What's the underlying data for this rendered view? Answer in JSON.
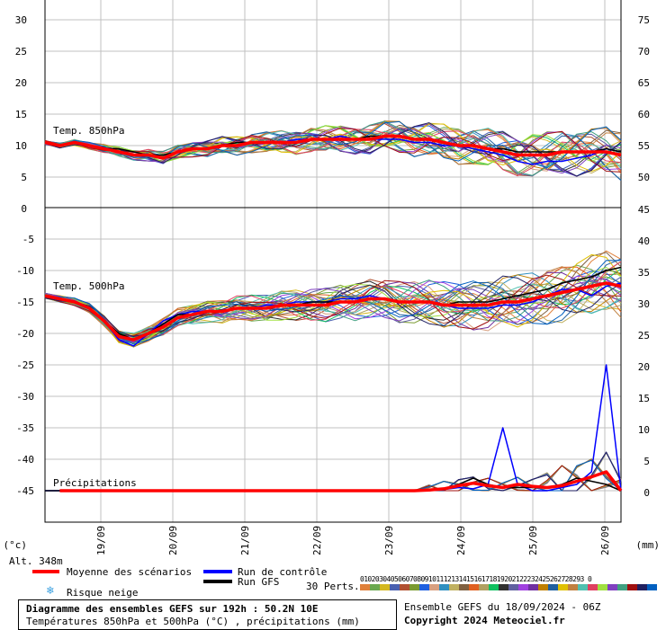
{
  "chart_data": {
    "type": "line",
    "x_axis": {
      "dates": [
        "19/09",
        "20/09",
        "21/09",
        "22/09",
        "23/09",
        "24/09",
        "25/09",
        "26/09"
      ],
      "unit_label": "(°c)",
      "right_unit_label": "(mm)"
    },
    "panels": [
      {
        "name": "Temp. 850hPa",
        "left_ticks": [
          5,
          10,
          15,
          20,
          25,
          30
        ],
        "right_ticks": [
          50,
          55,
          60,
          65,
          70,
          75
        ],
        "ylim": [
          0,
          33
        ]
      },
      {
        "name": "Temp. 500hPa",
        "left_ticks": [
          -5,
          -10,
          -15,
          -20,
          -25,
          -30,
          -35,
          -40,
          -45
        ],
        "right_ticks": [
          45,
          40,
          35,
          30,
          25,
          20,
          15,
          10,
          5,
          0
        ],
        "ylim": [
          -45,
          0
        ]
      },
      {
        "name": "Précipitations",
        "unit": "mm"
      }
    ],
    "mean_850": [
      10.5,
      10,
      10.5,
      10,
      9.5,
      9,
      8.5,
      8.5,
      8,
      9,
      9.5,
      9.5,
      10,
      10,
      10.5,
      10.5,
      10.5,
      10.5,
      11,
      11,
      11,
      11,
      11,
      11.5,
      11.5,
      11,
      11,
      10.5,
      10,
      10,
      9.5,
      9,
      8.5,
      8.5,
      8.5,
      9,
      9,
      9,
      9,
      8.5
    ],
    "mean_500": [
      -14,
      -14.5,
      -15,
      -16,
      -18,
      -20.5,
      -21,
      -20,
      -19,
      -17.5,
      -17,
      -16.5,
      -16.5,
      -16,
      -16,
      -16,
      -15.5,
      -15.5,
      -15.5,
      -15.5,
      -15,
      -15,
      -14.5,
      -14.5,
      -15,
      -15,
      -15,
      -15.5,
      -15.5,
      -15.5,
      -15.5,
      -15,
      -15,
      -14.5,
      -14,
      -13.5,
      -13,
      -12.5,
      -12,
      -12.5
    ],
    "mean_precip": [
      0,
      0,
      0,
      0,
      0,
      0,
      0,
      0,
      0,
      0,
      0,
      0,
      0,
      0,
      0,
      0,
      0,
      0,
      0,
      0,
      0,
      0,
      0,
      0,
      0,
      0,
      0.1,
      0.3,
      0.8,
      1.2,
      0.8,
      0.5,
      1,
      0.7,
      0.5,
      0.8,
      1.5,
      2.2,
      3,
      0
    ],
    "control_850": [
      10.5,
      10,
      10.5,
      10,
      9.5,
      9,
      8.5,
      8.5,
      8,
      9,
      9.5,
      9.5,
      10,
      10,
      10.5,
      10.5,
      10.5,
      11,
      11,
      11,
      11.5,
      11,
      11,
      11,
      11,
      10.5,
      10.5,
      10,
      10,
      9.5,
      9,
      8.5,
      7.5,
      7,
      7.5,
      7.5,
      8,
      8.5,
      9.5,
      9
    ],
    "control_500": [
      -14,
      -14.5,
      -15,
      -16,
      -18,
      -21,
      -22,
      -20,
      -18,
      -17,
      -16.5,
      -16.5,
      -16.5,
      -16,
      -16,
      -15.5,
      -15.5,
      -15,
      -15,
      -15,
      -14.5,
      -14.5,
      -14,
      -14.5,
      -15,
      -15,
      -15,
      -15.5,
      -16,
      -16,
      -16,
      -15.5,
      -15.5,
      -15,
      -14,
      -13,
      -13,
      -14,
      -12.5,
      -12
    ],
    "control_precip": [
      0,
      0,
      0,
      0,
      0,
      0,
      0,
      0,
      0,
      0,
      0,
      0,
      0,
      0,
      0,
      0,
      0,
      0,
      0,
      0,
      0,
      0,
      0,
      0,
      0,
      0,
      0,
      0.2,
      0.5,
      0.3,
      1,
      10,
      1,
      0,
      0,
      0.5,
      1,
      3,
      20,
      0
    ],
    "gfs_850": [
      10.5,
      10,
      10.5,
      10,
      9.5,
      9.5,
      9,
      8.5,
      8.5,
      9,
      9.5,
      9.5,
      10,
      10.5,
      10.5,
      10.5,
      10.5,
      10.5,
      11,
      11,
      11,
      11,
      11.5,
      11.5,
      11.5,
      11,
      11,
      10.5,
      10,
      10,
      9.5,
      9.5,
      9,
      9,
      9,
      9,
      9,
      9,
      9.5,
      9
    ],
    "gfs_500": [
      -14,
      -14.5,
      -15,
      -16,
      -18,
      -20,
      -21,
      -20,
      -18.5,
      -17,
      -17,
      -16.5,
      -16.5,
      -16,
      -16,
      -16,
      -15.5,
      -15.5,
      -15,
      -15,
      -15,
      -15,
      -14.5,
      -14.5,
      -15,
      -15,
      -15,
      -15.5,
      -15,
      -15,
      -15,
      -14.5,
      -14,
      -13.5,
      -13,
      -12,
      -11.5,
      -11,
      -10,
      -9.5
    ],
    "gfs_precip": [
      0,
      0,
      0,
      0,
      0,
      0,
      0,
      0,
      0,
      0,
      0,
      0,
      0,
      0,
      0,
      0,
      0,
      0,
      0,
      0,
      0,
      0,
      0,
      0,
      0,
      0,
      0,
      0.3,
      1,
      2,
      1,
      0.5,
      0.5,
      0.5,
      0.5,
      1,
      2,
      1.5,
      1,
      0
    ],
    "perturbation_colors": [
      "#e0803a",
      "#6aa84f",
      "#d4b820",
      "#4a60b0",
      "#b05030",
      "#7a9a30",
      "#2060e0",
      "#d8a080",
      "#3090c0",
      "#c0b060",
      "#806040",
      "#e06020",
      "#b0a060",
      "#10c060",
      "#303030",
      "#6060a0",
      "#a040e0",
      "#7030a0",
      "#c08000",
      "#2060a0",
      "#e0c000",
      "#c08040",
      "#50c0b0",
      "#e04060",
      "#a0e040",
      "#8040c0",
      "#40a080",
      "#a01010",
      "#202060",
      "#0060c0"
    ]
  },
  "labels": {
    "alt": "Alt. 348m",
    "pert_count": "30 Perts.",
    "pert_numbers": "01020304050607080910111213141516171819202122232425262728293 0",
    "snow_risk": "Risque neige",
    "legend_mean": "Moyenne des scénarios",
    "legend_control": "Run de contrôle",
    "legend_gfs": "Run GFS",
    "ensemble_info": "Ensemble GEFS du 18/09/2024 - 06Z",
    "copyright": "Copyright 2024 Meteociel.fr",
    "title": "Diagramme des ensembles GEFS sur 192h : 50.2N 10E",
    "subtitle": "Températures 850hPa et 500hPa (°C) , précipitations (mm)"
  },
  "colors": {
    "mean": "#ff0000",
    "control": "#0000ff",
    "gfs": "#000000",
    "grid": "#c0c0c0"
  }
}
